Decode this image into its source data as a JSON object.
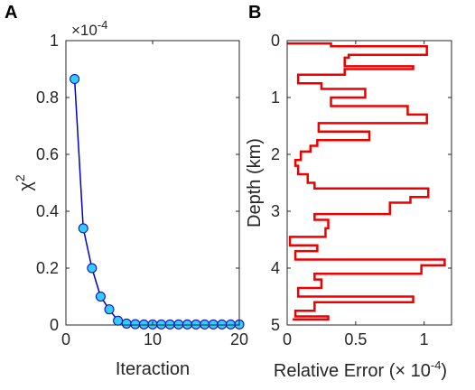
{
  "chart_data": [
    {
      "panel": "A",
      "type": "line",
      "xlabel": "Iteraction",
      "ylabel": "χ",
      "ylabel_sup": "2",
      "scale_label": "×10",
      "scale_exponent": "-4",
      "xlim": [
        0,
        20
      ],
      "ylim": [
        0,
        1
      ],
      "xticks": [
        0,
        10,
        20
      ],
      "yticks": [
        0,
        0.2,
        0.4,
        0.6,
        0.8,
        1
      ],
      "ytick_labels": [
        "0",
        "0.2",
        "0.4",
        "0.6",
        "0.8",
        "1"
      ],
      "grid": false,
      "line_color": "#0000cc",
      "marker_color": "#33ccff",
      "x": [
        1,
        2,
        3,
        4,
        5,
        6,
        7,
        8,
        9,
        10,
        11,
        12,
        13,
        14,
        15,
        16,
        17,
        18,
        19,
        20
      ],
      "y": [
        0.865,
        0.34,
        0.2,
        0.1,
        0.055,
        0.015,
        0.005,
        0.003,
        0.002,
        0.002,
        0.002,
        0.002,
        0.002,
        0.002,
        0.002,
        0.002,
        0.002,
        0.002,
        0.002,
        0.002
      ]
    },
    {
      "panel": "B",
      "type": "line",
      "subtype": "stairs",
      "xlabel": "Relative Error (",
      "xlabel_scale": "× 10",
      "xlabel_exponent": "-4",
      "xlabel_end": ")",
      "ylabel": "Depth (km)",
      "xlim": [
        0,
        1.2
      ],
      "ylim": [
        0,
        5
      ],
      "y_reversed": true,
      "xticks": [
        0,
        0.5,
        1
      ],
      "xtick_labels": [
        "0",
        "0.5",
        "1"
      ],
      "yticks": [
        0,
        1,
        2,
        3,
        4,
        5
      ],
      "grid": false,
      "line_color": "#ee0000",
      "depth_edges": [
        0.05,
        0.1,
        0.25,
        0.3,
        0.45,
        0.5,
        0.6,
        0.75,
        0.85,
        1.0,
        1.15,
        1.3,
        1.45,
        1.6,
        1.75,
        1.85,
        1.95,
        2.1,
        2.2,
        2.35,
        2.5,
        2.6,
        2.75,
        2.85,
        3.05,
        3.15,
        3.3,
        3.45,
        3.6,
        3.7,
        3.85,
        3.95,
        4.1,
        4.2,
        4.35,
        4.5,
        4.6,
        4.75,
        4.85,
        4.9
      ],
      "error_values": [
        0.32,
        1.02,
        0.45,
        0.42,
        0.92,
        0.42,
        0.08,
        0.25,
        0.57,
        0.32,
        0.88,
        1.02,
        0.23,
        0.6,
        0.22,
        0.17,
        0.1,
        0.06,
        0.08,
        0.15,
        0.2,
        1.03,
        0.9,
        0.75,
        0.2,
        0.3,
        0.28,
        0.02,
        0.22,
        0.06,
        1.15,
        0.98,
        0.2,
        0.25,
        0.08,
        0.92,
        0.2,
        0.06,
        0.3,
        0.04
      ]
    }
  ]
}
